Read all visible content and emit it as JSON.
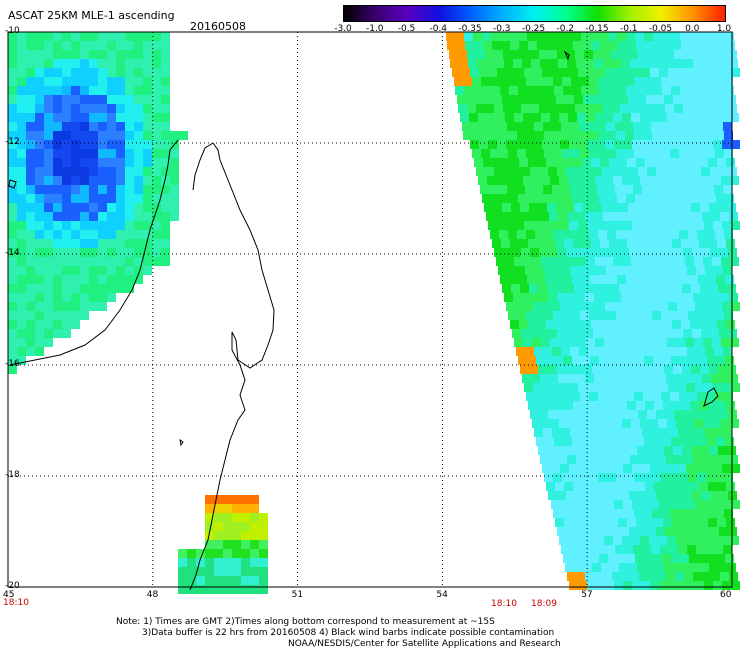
{
  "header": {
    "title": "ASCAT 25KM MLE-1 ascending",
    "date": "20160508"
  },
  "colorbar": {
    "labels": [
      "-3.0",
      "-1.0",
      "-0.5",
      "-0.4",
      "-0.35",
      "-0.3",
      "-0.25",
      "-0.2",
      "-0.15",
      "-0.1",
      "-0.05",
      "0.0",
      "1.0"
    ],
    "colors": [
      "#000000",
      "#3a0070",
      "#5a00c0",
      "#1010e0",
      "#0060ff",
      "#00b0ff",
      "#00f0f0",
      "#00ff90",
      "#10e000",
      "#a0f000",
      "#f0f000",
      "#ff9000",
      "#ff2000"
    ]
  },
  "map": {
    "lon_labels": [
      "45",
      "48",
      "51",
      "54",
      "57",
      "60"
    ],
    "lat_labels": [
      "-10",
      "-12",
      "-14",
      "-16",
      "-18",
      "-20"
    ],
    "gridline_color": "#000000"
  },
  "times": {
    "left": "18:10",
    "mid1": "18:10",
    "mid2": "18:09"
  },
  "notes": {
    "line1": "Note: 1) Times are GMT 2)Times along bottom correspond to measurement at ~15S",
    "line2": "3)Data buffer is 22 hrs from 20160508 4) Black wind barbs indicate possible contamination",
    "line3": "NOAA/NESDIS/Center for Satellite Applications and Research"
  }
}
